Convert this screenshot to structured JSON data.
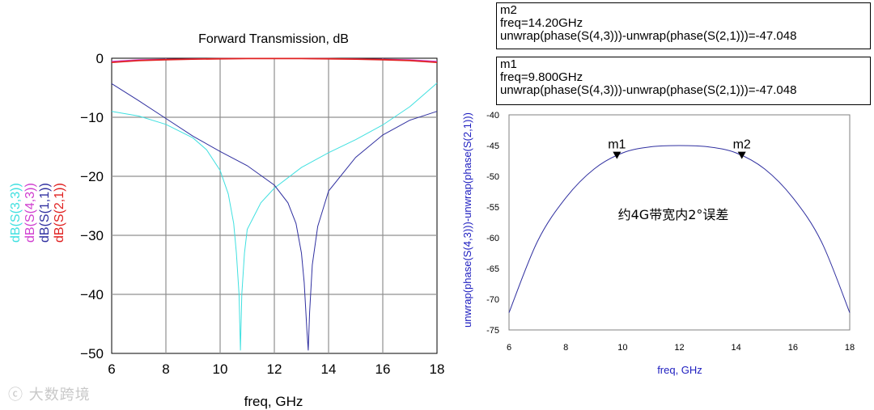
{
  "markers_panel": [
    {
      "name": "m2",
      "freq_label": "freq=14.20GHz",
      "expr_label": "unwrap(phase(S(4,3)))-unwrap(phase(S(2,1)))=-47.048"
    },
    {
      "name": "m1",
      "freq_label": "freq=9.800GHz",
      "expr_label": "unwrap(phase(S(4,3)))-unwrap(phase(S(2,1)))=-47.048"
    }
  ],
  "watermark": "大数跨境",
  "chart_data": [
    {
      "type": "line",
      "title": "Forward Transmission, dB",
      "xlabel": "freq, GHz",
      "ylabel": "",
      "xlim": [
        6,
        18
      ],
      "ylim": [
        -50,
        0
      ],
      "xticks": [
        6,
        8,
        10,
        12,
        14,
        16,
        18
      ],
      "yticks": [
        0,
        -10,
        -20,
        -30,
        -40,
        -50
      ],
      "grid": true,
      "legend_placement": "left-vertical",
      "series": [
        {
          "name": "dB(S(3,3))",
          "color": "#40e0e0",
          "x": [
            6,
            7,
            8,
            9,
            9.5,
            10,
            10.3,
            10.5,
            10.6,
            10.7,
            10.75,
            10.8,
            10.9,
            11,
            11.5,
            12,
            13,
            14,
            15,
            16,
            17,
            18
          ],
          "y": [
            -9,
            -9.8,
            -11.2,
            -13.5,
            -15.5,
            -19,
            -23,
            -28,
            -33,
            -40,
            -49.5,
            -40,
            -33,
            -29,
            -24.5,
            -22,
            -18.5,
            -16,
            -13.8,
            -11.3,
            -8.2,
            -4.2
          ]
        },
        {
          "name": "dB(S(4,3))",
          "color": "#d040d0",
          "x": [
            6,
            7,
            8,
            9,
            10,
            11,
            12,
            13,
            14,
            15,
            16,
            17,
            18
          ],
          "y": [
            -0.5,
            -0.25,
            -0.15,
            -0.1,
            -0.05,
            -0.03,
            -0.02,
            -0.03,
            -0.05,
            -0.1,
            -0.15,
            -0.25,
            -0.5
          ]
        },
        {
          "name": "dB(S(1,1))",
          "color": "#3030a0",
          "x": [
            6,
            7,
            8,
            9,
            10,
            11,
            12,
            12.5,
            12.8,
            13,
            13.1,
            13.2,
            13.25,
            13.3,
            13.4,
            13.6,
            14,
            15,
            16,
            17,
            18
          ],
          "y": [
            -4.3,
            -7.2,
            -10.2,
            -13.2,
            -15.8,
            -18.2,
            -21.5,
            -24.5,
            -28,
            -33,
            -38,
            -46,
            -49.5,
            -43,
            -35,
            -28.5,
            -22.5,
            -16.8,
            -13,
            -10.5,
            -9
          ]
        },
        {
          "name": "dB(S(2,1))",
          "color": "#e02020",
          "x": [
            6,
            7,
            8,
            9,
            10,
            11,
            12,
            13,
            14,
            15,
            16,
            17,
            18
          ],
          "y": [
            -0.7,
            -0.4,
            -0.25,
            -0.15,
            -0.1,
            -0.06,
            -0.05,
            -0.06,
            -0.1,
            -0.15,
            -0.25,
            -0.4,
            -0.7
          ]
        }
      ]
    },
    {
      "type": "line",
      "title": "",
      "xlabel": "freq, GHz",
      "ylabel": "unwrap(phase(S(4,3)))-unwrap(phase(S(2,1)))",
      "xlim": [
        6,
        18
      ],
      "ylim": [
        -75,
        -40
      ],
      "xticks": [
        6,
        8,
        10,
        12,
        14,
        16,
        18
      ],
      "yticks": [
        -40,
        -45,
        -50,
        -55,
        -60,
        -65,
        -70,
        -75
      ],
      "grid": false,
      "annotation": "约4G带宽内2°误差",
      "series": [
        {
          "name": "",
          "color": "#3030a0",
          "x": [
            6,
            7,
            8,
            9,
            10,
            11,
            12,
            13,
            14,
            15,
            16,
            17,
            18
          ],
          "y": [
            -72.2,
            -60.6,
            -53.5,
            -48.8,
            -46.2,
            -45.2,
            -45,
            -45.2,
            -46.2,
            -48.8,
            -53.5,
            -60.6,
            -72.2
          ]
        }
      ],
      "markers": [
        {
          "label": "m1",
          "x": 9.8,
          "y": -47.048
        },
        {
          "label": "m2",
          "x": 14.2,
          "y": -47.048
        }
      ]
    }
  ]
}
